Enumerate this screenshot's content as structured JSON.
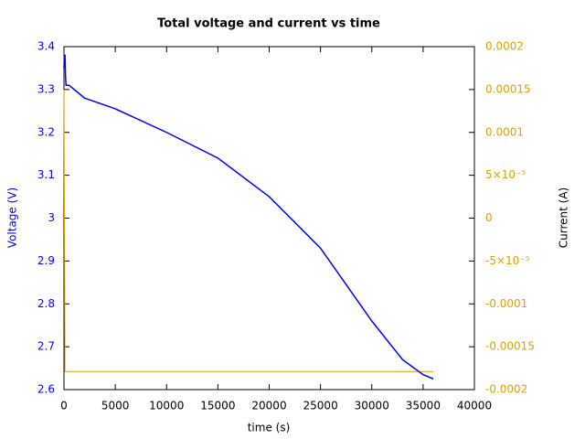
{
  "chart_data": {
    "type": "line",
    "title": "Total voltage and current vs time",
    "x_label": "time (s)",
    "y_label": "Voltage (V)",
    "y2_label": "Current (A)",
    "xlim": [
      0,
      40000
    ],
    "xticks": [
      0,
      5000,
      10000,
      15000,
      20000,
      25000,
      30000,
      35000,
      40000
    ],
    "ylim": [
      2.6,
      3.4
    ],
    "yticks": [
      3.4,
      3.3,
      3.2,
      3.1,
      3,
      2.9,
      2.8,
      2.7,
      2.6
    ],
    "y2lim": [
      -0.0002,
      0.0002
    ],
    "y2ticks": [
      0.0002,
      0.00015,
      0.0001,
      {
        "value": 5e-05,
        "label": "5×10⁻⁵"
      },
      0,
      {
        "value": -5e-05,
        "label": "-5×10⁻⁵"
      },
      -0.0001,
      -0.00015,
      -0.0002
    ],
    "y_color": "#0000ff",
    "y2_color": "#e0a000",
    "series": [
      {
        "color": "#0000ff",
        "axis": "y",
        "x": [
          0,
          50,
          100,
          150,
          200,
          500,
          1000,
          2000,
          5000,
          10000,
          15000,
          20000,
          25000,
          30000,
          33000,
          35000,
          36000
        ],
        "values": [
          3.35,
          3.38,
          3.38,
          3.33,
          3.31,
          3.31,
          3.3,
          3.28,
          3.255,
          3.2,
          3.14,
          3.05,
          2.93,
          2.76,
          2.67,
          2.635,
          2.625
        ]
      },
      {
        "color": "#e0a000",
        "axis": "y2",
        "x": [
          0,
          100,
          36000
        ],
        "values": [
          0.00015,
          -0.000179,
          -0.000179
        ]
      }
    ]
  }
}
